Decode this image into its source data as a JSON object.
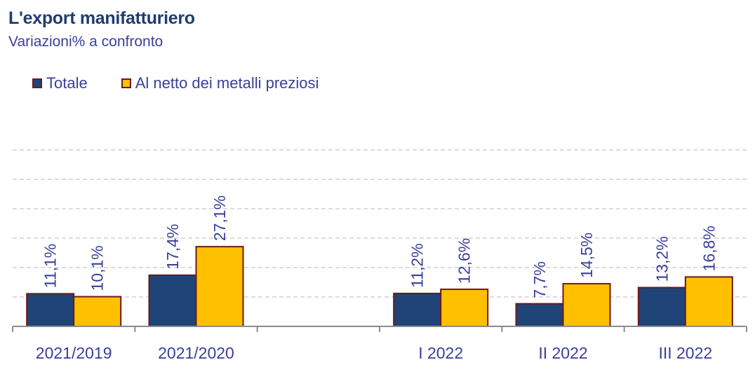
{
  "header": {
    "title": "L'export manifatturiero",
    "subtitle": "Variazioni% a confronto"
  },
  "colors": {
    "series_totale": "#1f4478",
    "series_netto": "#ffc000",
    "bar_border": "#6b1a1a",
    "text": "#3a3f9a",
    "grid": "#d0d0d0",
    "axis": "#8c8c8c"
  },
  "chart_data": {
    "type": "bar",
    "title": "L'export manifatturiero",
    "subtitle": "Variazioni% a confronto",
    "legend_position": "top-left",
    "grid": true,
    "ylim": [
      0,
      60
    ],
    "categories": [
      "2021/2019",
      "2021/2020",
      "",
      "I 2022",
      "II 2022",
      "III 2022"
    ],
    "series": [
      {
        "name": "Totale",
        "values": [
          11.1,
          17.4,
          null,
          11.2,
          7.7,
          13.2
        ],
        "labels": [
          "11,1%",
          "17,4%",
          "",
          "11,2%",
          "7,7%",
          "13,2%"
        ]
      },
      {
        "name": "Al netto dei metalli preziosi",
        "values": [
          10.1,
          27.1,
          null,
          12.6,
          14.5,
          16.8
        ],
        "labels": [
          "10,1%",
          "27,1%",
          "",
          "12,6%",
          "14,5%",
          "16,8%"
        ]
      }
    ]
  }
}
